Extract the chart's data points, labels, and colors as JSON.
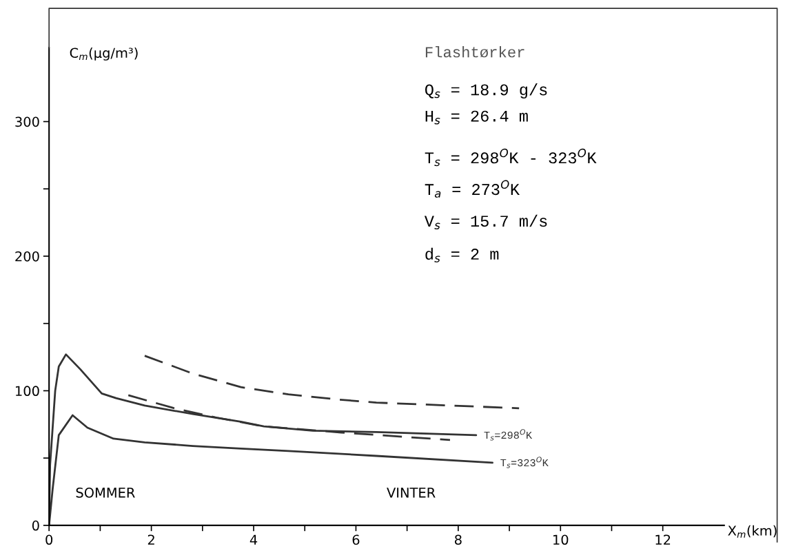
{
  "chart_data": {
    "type": "line",
    "title": "Flashtørker",
    "xlabel": "X$_{m}$(km)",
    "ylabel": "C$_{m}$(μg/m³)",
    "xlim": [
      0,
      13.2
    ],
    "ylim": [
      0,
      355
    ],
    "xticks": [
      0,
      {
        "value": 1,
        "label": null
      },
      2,
      {
        "value": 3,
        "label": null
      },
      4,
      {
        "value": 5,
        "label": null
      },
      6,
      {
        "value": 7,
        "label": null
      },
      8,
      {
        "value": 9,
        "label": null
      },
      10,
      {
        "value": 11,
        "label": null
      },
      12
    ],
    "yticks": [
      0,
      {
        "value": 50,
        "label": null
      },
      100,
      {
        "value": 150,
        "label": null
      },
      200,
      {
        "value": 250,
        "label": null
      },
      300
    ],
    "grid": false,
    "legend": false,
    "series": [
      {
        "name": "T$_{s}$=298$^{O}$K",
        "color": "#333333",
        "line_style": "solid",
        "x": [
          0,
          0.02,
          0.12,
          0.19,
          0.33,
          0.61,
          1.03,
          1.31,
          1.87,
          2.81,
          3.75,
          4.2,
          5.15,
          6.4,
          8.35
        ],
        "values": [
          0,
          45,
          100,
          118,
          127,
          116,
          98,
          94.5,
          89,
          82.7,
          77,
          73.5,
          70.4,
          69.3,
          67
        ]
      },
      {
        "name": "T$_{s}$=323$^{O}$K",
        "color": "#333333",
        "line_style": "solid",
        "x": [
          0,
          0.07,
          0.19,
          0.46,
          0.75,
          1.26,
          1.87,
          2.81,
          3.75,
          4.68,
          6.4,
          8.67
        ],
        "values": [
          0,
          27,
          67,
          81.8,
          72.6,
          64.4,
          61.7,
          59,
          57,
          55.3,
          51.6,
          46.5
        ]
      },
      {
        "color": "#333333",
        "line_style": "dashed",
        "x": [
          1.87,
          2.81,
          3.75,
          4.68,
          5.62,
          6.4,
          9.19
        ],
        "values": [
          126,
          112.8,
          102.7,
          97.3,
          93.6,
          91.2,
          87
        ]
      },
      {
        "color": "#333333",
        "line_style": "dashed",
        "x": [
          1.55,
          2.43,
          3.28,
          4.2,
          5.71,
          7.84
        ],
        "values": [
          96.7,
          87.2,
          80,
          73.5,
          69,
          63.4
        ]
      }
    ],
    "annotations": [
      "Q$_{s}$ = 18.9 g/s",
      "H$_{s}$ = 26.4 m",
      "T$_{s}$ = 298$^{O}$K - 323$^{O}$K",
      "T$_{a}$ = 273$^{O}$K",
      "V$_{s}$ = 15.7 m/s",
      "d$_{s}$ = 2 m",
      "SOMMER",
      "VINTER"
    ]
  }
}
